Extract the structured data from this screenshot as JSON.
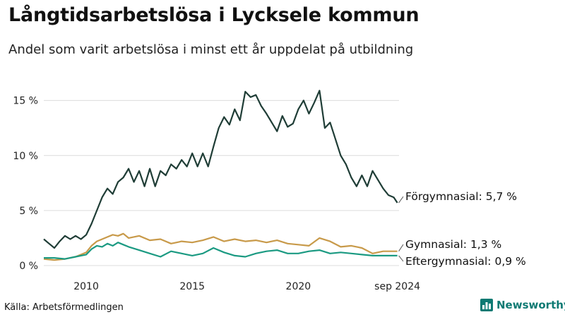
{
  "title": "Långtidsarbetslösa i Lycksele kommun",
  "subtitle": "Andel som varit arbetslösa i minst ett år uppdelat på utbildning",
  "source": "Källa: Arbetsförmedlingen",
  "brand": {
    "name": "Newsworthy",
    "icon": "bar-chart-logo-icon",
    "color": "#0e7a73"
  },
  "chart_data": {
    "type": "line",
    "title": "Långtidsarbetslösa i Lycksele kommun",
    "subtitle": "Andel som varit arbetslösa i minst ett år uppdelat på utbildning",
    "xlabel": "",
    "ylabel": "",
    "x_range": [
      2008.0,
      2024.75
    ],
    "ylim": [
      0,
      16
    ],
    "y_ticks": [
      0,
      5,
      10,
      15
    ],
    "y_tick_labels": [
      "0 %",
      "5 %",
      "10 %",
      "15 %"
    ],
    "x_ticks": [
      2010,
      2015,
      2020,
      2024.67
    ],
    "x_tick_labels": [
      "2010",
      "2015",
      "2020",
      "sep 2024"
    ],
    "grid": true,
    "legend": "end-labels",
    "series": [
      {
        "name": "Förgymnasial",
        "label": "Förgymnasial: 5,7 %",
        "color": "#1f3d36",
        "points": [
          [
            2008.0,
            2.4
          ],
          [
            2008.25,
            2.0
          ],
          [
            2008.5,
            1.6
          ],
          [
            2008.75,
            2.2
          ],
          [
            2009.0,
            2.7
          ],
          [
            2009.25,
            2.4
          ],
          [
            2009.5,
            2.7
          ],
          [
            2009.75,
            2.4
          ],
          [
            2010.0,
            2.8
          ],
          [
            2010.25,
            3.8
          ],
          [
            2010.5,
            5.0
          ],
          [
            2010.75,
            6.2
          ],
          [
            2011.0,
            7.0
          ],
          [
            2011.25,
            6.5
          ],
          [
            2011.5,
            7.6
          ],
          [
            2011.75,
            8.0
          ],
          [
            2012.0,
            8.8
          ],
          [
            2012.25,
            7.6
          ],
          [
            2012.5,
            8.6
          ],
          [
            2012.75,
            7.2
          ],
          [
            2013.0,
            8.8
          ],
          [
            2013.25,
            7.2
          ],
          [
            2013.5,
            8.6
          ],
          [
            2013.75,
            8.2
          ],
          [
            2014.0,
            9.2
          ],
          [
            2014.25,
            8.8
          ],
          [
            2014.5,
            9.6
          ],
          [
            2014.75,
            9.0
          ],
          [
            2015.0,
            10.2
          ],
          [
            2015.25,
            9.0
          ],
          [
            2015.5,
            10.2
          ],
          [
            2015.75,
            9.0
          ],
          [
            2016.0,
            10.8
          ],
          [
            2016.25,
            12.5
          ],
          [
            2016.5,
            13.5
          ],
          [
            2016.75,
            12.8
          ],
          [
            2017.0,
            14.2
          ],
          [
            2017.25,
            13.2
          ],
          [
            2017.5,
            15.8
          ],
          [
            2017.75,
            15.3
          ],
          [
            2018.0,
            15.5
          ],
          [
            2018.25,
            14.5
          ],
          [
            2018.5,
            13.8
          ],
          [
            2018.75,
            13.0
          ],
          [
            2019.0,
            12.2
          ],
          [
            2019.25,
            13.6
          ],
          [
            2019.5,
            12.6
          ],
          [
            2019.75,
            12.9
          ],
          [
            2020.0,
            14.2
          ],
          [
            2020.25,
            15.0
          ],
          [
            2020.5,
            13.8
          ],
          [
            2020.75,
            14.8
          ],
          [
            2021.0,
            15.9
          ],
          [
            2021.25,
            12.5
          ],
          [
            2021.5,
            13.0
          ],
          [
            2021.75,
            11.5
          ],
          [
            2022.0,
            10.0
          ],
          [
            2022.25,
            9.2
          ],
          [
            2022.5,
            8.0
          ],
          [
            2022.75,
            7.2
          ],
          [
            2023.0,
            8.2
          ],
          [
            2023.25,
            7.2
          ],
          [
            2023.5,
            8.6
          ],
          [
            2023.75,
            7.8
          ],
          [
            2024.0,
            7.0
          ],
          [
            2024.25,
            6.4
          ],
          [
            2024.5,
            6.2
          ],
          [
            2024.67,
            5.7
          ]
        ]
      },
      {
        "name": "Gymnasial",
        "label": "Gymnasial: 1,3 %",
        "color": "#c89a4a",
        "points": [
          [
            2008.0,
            0.6
          ],
          [
            2008.5,
            0.5
          ],
          [
            2009.0,
            0.6
          ],
          [
            2009.5,
            0.8
          ],
          [
            2010.0,
            1.2
          ],
          [
            2010.25,
            1.8
          ],
          [
            2010.5,
            2.2
          ],
          [
            2010.75,
            2.4
          ],
          [
            2011.0,
            2.6
          ],
          [
            2011.25,
            2.8
          ],
          [
            2011.5,
            2.7
          ],
          [
            2011.75,
            2.9
          ],
          [
            2012.0,
            2.5
          ],
          [
            2012.5,
            2.7
          ],
          [
            2013.0,
            2.3
          ],
          [
            2013.5,
            2.4
          ],
          [
            2014.0,
            2.0
          ],
          [
            2014.5,
            2.2
          ],
          [
            2015.0,
            2.1
          ],
          [
            2015.5,
            2.3
          ],
          [
            2016.0,
            2.6
          ],
          [
            2016.5,
            2.2
          ],
          [
            2017.0,
            2.4
          ],
          [
            2017.5,
            2.2
          ],
          [
            2018.0,
            2.3
          ],
          [
            2018.5,
            2.1
          ],
          [
            2019.0,
            2.3
          ],
          [
            2019.5,
            2.0
          ],
          [
            2020.0,
            1.9
          ],
          [
            2020.5,
            1.8
          ],
          [
            2021.0,
            2.5
          ],
          [
            2021.5,
            2.2
          ],
          [
            2022.0,
            1.7
          ],
          [
            2022.5,
            1.8
          ],
          [
            2023.0,
            1.6
          ],
          [
            2023.5,
            1.1
          ],
          [
            2024.0,
            1.3
          ],
          [
            2024.67,
            1.3
          ]
        ]
      },
      {
        "name": "Eftergymnasial",
        "label": "Eftergymnasial: 0,9 %",
        "color": "#1b9a82",
        "points": [
          [
            2008.0,
            0.7
          ],
          [
            2008.5,
            0.7
          ],
          [
            2009.0,
            0.6
          ],
          [
            2009.5,
            0.8
          ],
          [
            2010.0,
            1.0
          ],
          [
            2010.25,
            1.5
          ],
          [
            2010.5,
            1.8
          ],
          [
            2010.75,
            1.7
          ],
          [
            2011.0,
            2.0
          ],
          [
            2011.25,
            1.8
          ],
          [
            2011.5,
            2.1
          ],
          [
            2011.75,
            1.9
          ],
          [
            2012.0,
            1.7
          ],
          [
            2012.5,
            1.4
          ],
          [
            2013.0,
            1.1
          ],
          [
            2013.5,
            0.8
          ],
          [
            2014.0,
            1.3
          ],
          [
            2014.5,
            1.1
          ],
          [
            2015.0,
            0.9
          ],
          [
            2015.5,
            1.1
          ],
          [
            2016.0,
            1.6
          ],
          [
            2016.5,
            1.2
          ],
          [
            2017.0,
            0.9
          ],
          [
            2017.5,
            0.8
          ],
          [
            2018.0,
            1.1
          ],
          [
            2018.5,
            1.3
          ],
          [
            2019.0,
            1.4
          ],
          [
            2019.5,
            1.1
          ],
          [
            2020.0,
            1.1
          ],
          [
            2020.5,
            1.3
          ],
          [
            2021.0,
            1.4
          ],
          [
            2021.5,
            1.1
          ],
          [
            2022.0,
            1.2
          ],
          [
            2022.5,
            1.1
          ],
          [
            2023.0,
            1.0
          ],
          [
            2023.5,
            0.9
          ],
          [
            2024.0,
            0.9
          ],
          [
            2024.67,
            0.9
          ]
        ]
      }
    ]
  }
}
